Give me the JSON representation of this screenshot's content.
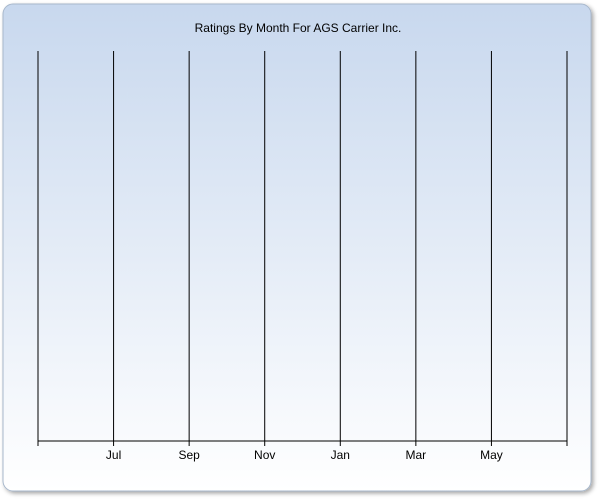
{
  "chart_data": {
    "type": "line",
    "title": "Ratings By Month For AGS Carrier Inc.",
    "categories": [
      null,
      "Jul",
      "Sep",
      "Nov",
      "Jan",
      "Mar",
      "May",
      null
    ],
    "series": [],
    "grid": true
  }
}
